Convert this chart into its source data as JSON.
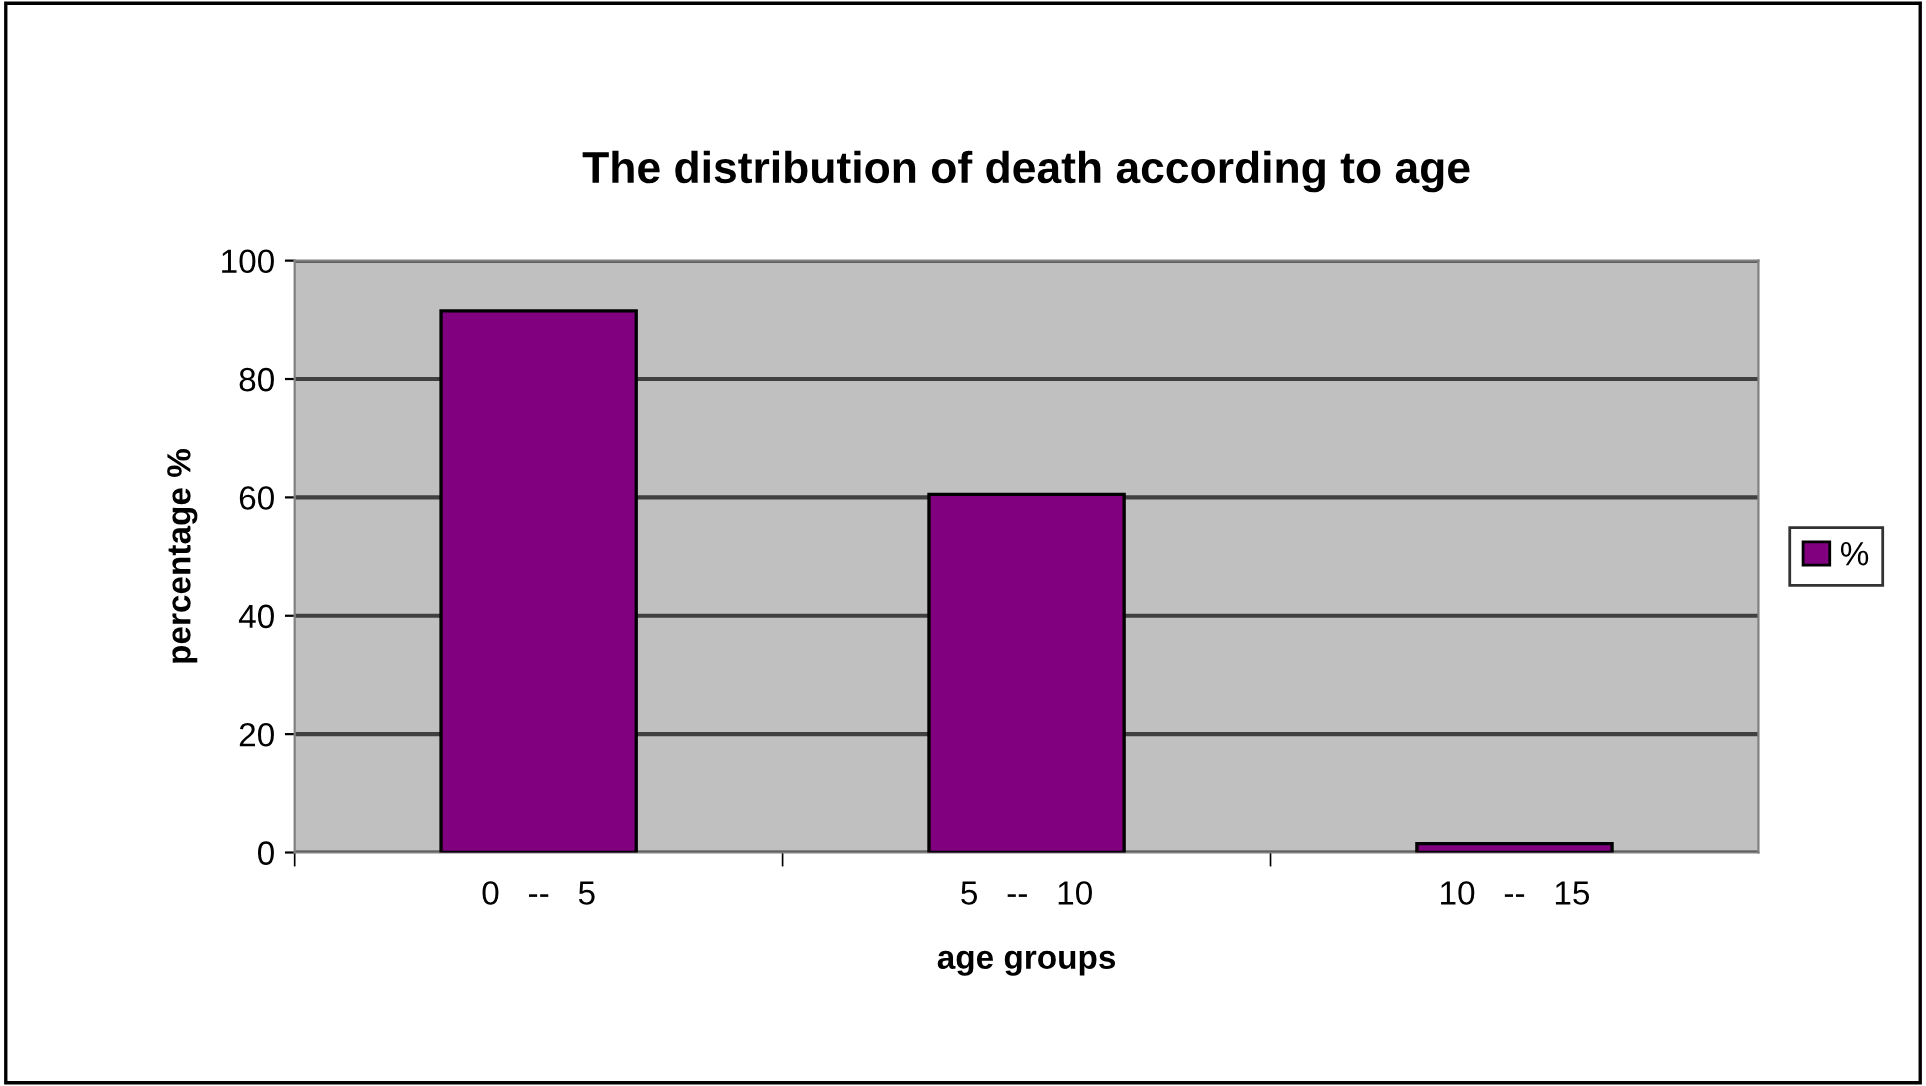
{
  "chart_data": {
    "type": "bar",
    "title": "The distribution of death according to age",
    "xlabel": "age groups",
    "ylabel": "percentage %",
    "categories": [
      "0   --   5",
      "5   --   10",
      "10   --   15"
    ],
    "series": [
      {
        "name": "%",
        "color": "#800080",
        "values": [
          91.5,
          60.5,
          1.5
        ]
      }
    ],
    "ylim": [
      0,
      100
    ],
    "yticks": [
      0,
      20,
      40,
      60,
      80,
      100
    ],
    "grid": "y",
    "legend": "right"
  }
}
